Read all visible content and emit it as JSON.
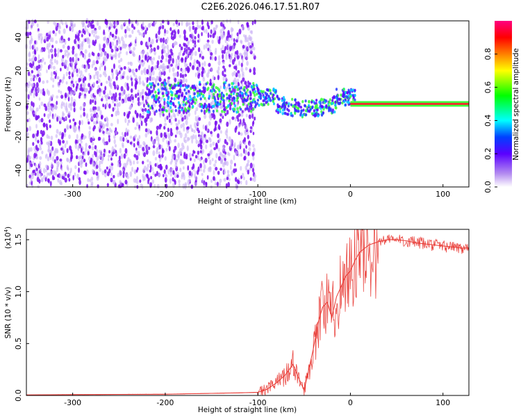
{
  "title": "C2E6.2026.046.17.51.R07",
  "colors": {
    "trace": "#e8332d",
    "tone": "#e8332d",
    "noise_dark": "#7a10f0",
    "noise_light": "#c9b0f5"
  },
  "chart_data": [
    {
      "type": "heatmap",
      "name": "spectrogram",
      "xlabel": "Height of straight line (km)",
      "ylabel": "Frequency (Hz)",
      "xlim": [
        -350,
        128
      ],
      "ylim": [
        -50,
        50
      ],
      "xticks": [
        -300,
        -200,
        -100,
        0,
        100
      ],
      "yticks": [
        -40,
        -20,
        0,
        20,
        40
      ],
      "tone_frequency_hz": 0,
      "colorbar": {
        "label": "Normalized spectral amplitude",
        "range": [
          0,
          1
        ],
        "ticks": [
          0.0,
          0.2,
          0.4,
          0.6,
          0.8
        ],
        "tick_labels": [
          "0.0",
          "0.2",
          "0.4",
          "0.6",
          "0.8"
        ]
      }
    },
    {
      "type": "line",
      "name": "snr",
      "xlabel": "Height of straight line (km)",
      "ylabel": "SNR (10 * v/v)",
      "y_scale_label": "(x10",
      "y_scale_exp": "4",
      "xlim": [
        -350,
        128
      ],
      "ylim": [
        0,
        1.6
      ],
      "xticks": [
        -300,
        -200,
        -100,
        0,
        100
      ],
      "yticks": [
        0.0,
        0.5,
        1.0,
        1.5
      ],
      "ytick_labels": [
        "0.0",
        "0.5",
        "1.0",
        "1.5"
      ],
      "series": [
        {
          "name": "SNR",
          "x": [
            -350,
            -300,
            -250,
            -200,
            -150,
            -120,
            -100,
            -90,
            -80,
            -70,
            -62,
            -55,
            -50,
            -45,
            -40,
            -35,
            -30,
            -25,
            -20,
            -15,
            -10,
            -5,
            0,
            5,
            10,
            20,
            30,
            40,
            50,
            60,
            70,
            80,
            90,
            100,
            110,
            120,
            128
          ],
          "y": [
            0.005,
            0.008,
            0.01,
            0.012,
            0.02,
            0.025,
            0.03,
            0.06,
            0.12,
            0.2,
            0.3,
            0.15,
            0.05,
            0.25,
            0.45,
            0.7,
            0.85,
            0.9,
            0.75,
            0.95,
            1.05,
            1.15,
            1.2,
            1.3,
            1.38,
            1.45,
            1.48,
            1.5,
            1.5,
            1.49,
            1.47,
            1.46,
            1.45,
            1.44,
            1.43,
            1.42,
            1.42
          ]
        }
      ]
    }
  ]
}
